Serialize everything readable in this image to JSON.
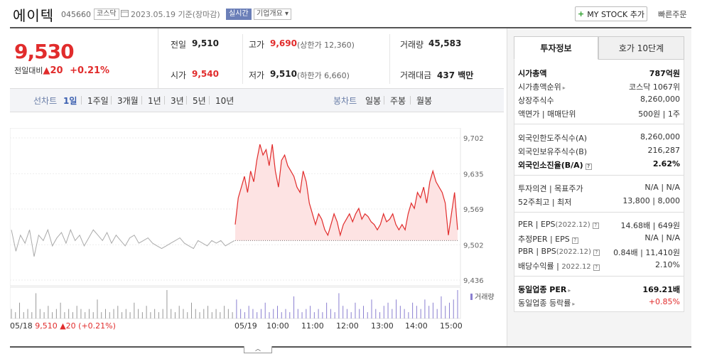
{
  "header": {
    "name": "에이텍",
    "code": "045660",
    "market_tag": "코스닥",
    "date": "2023.05.19 기준(장마감)",
    "live_tag": "실시간",
    "corp_tag": "기업개요",
    "corp_tag_arrow": "▾",
    "mystock_plus": "+",
    "mystock_label": "MY STOCK 추가",
    "quick_order": "빠른주문"
  },
  "quote": {
    "price": "9,530",
    "change_label": "전일대비",
    "change_arrow": "▲",
    "change_value": "20",
    "change_pct": "+0.21%",
    "prev_close_label": "전일",
    "prev_close": "9,510",
    "open_label": "시가",
    "open": "9,540",
    "high_label": "고가",
    "high": "9,690",
    "upper_limit": "(상한가 12,360)",
    "low_label": "저가",
    "low": "9,510",
    "lower_limit": "(하한가 6,660)",
    "volume_label": "거래량",
    "volume": "45,583",
    "amount_label": "거래대금",
    "amount": "437 백만"
  },
  "chart_tabs": {
    "line_label": "선차트",
    "line_items": [
      "1일",
      "1주일",
      "3개월",
      "1년",
      "3년",
      "5년",
      "10년"
    ],
    "selected": "1일",
    "candle_label": "봉차트",
    "candle_items": [
      "일봉",
      "주봉",
      "월봉"
    ]
  },
  "chart_data": {
    "type": "line",
    "y_ticks": [
      "9,702",
      "9,635",
      "9,569",
      "9,502",
      "9,436"
    ],
    "ylim": [
      9436,
      9702
    ],
    "baseline": 9510,
    "x_ticks": [
      "05/18",
      "05/19",
      "10:00",
      "11:00",
      "12:00",
      "13:00",
      "14:00",
      "15:00"
    ],
    "prev_day": {
      "date": "05/18",
      "close": "9,510",
      "change": "▲20",
      "change_pct": "(+0.21%)"
    },
    "volume_label": "거래량",
    "series": [
      {
        "session": "05/18",
        "values": [
          9530,
          9490,
          9520,
          9505,
          9530,
          9480,
          9520,
          9510,
          9530,
          9500,
          9515,
          9525,
          9505,
          9530,
          9510,
          9520,
          9500,
          9515,
          9530,
          9520,
          9510,
          9525,
          9505,
          9520,
          9510,
          9500,
          9515,
          9520,
          9505,
          9510,
          9515,
          9505,
          9500,
          9495,
          9500,
          9505,
          9510,
          9515,
          9505,
          9500,
          9495,
          9510,
          9505,
          9500,
          9510,
          9505,
          9510,
          9500,
          9505,
          9510
        ]
      },
      {
        "session": "05/19",
        "values": [
          9540,
          9590,
          9610,
          9630,
          9600,
          9640,
          9620,
          9660,
          9690,
          9670,
          9680,
          9650,
          9690,
          9640,
          9610,
          9660,
          9670,
          9650,
          9640,
          9630,
          9610,
          9600,
          9640,
          9620,
          9580,
          9560,
          9540,
          9560,
          9550,
          9530,
          9520,
          9540,
          9560,
          9545,
          9520,
          9540,
          9550,
          9560,
          9545,
          9560,
          9570,
          9550,
          9560,
          9555,
          9545,
          9540,
          9530,
          9540,
          9560,
          9545,
          9550,
          9560,
          9540,
          9530,
          9540,
          9530,
          9560,
          9580,
          9570,
          9600,
          9590,
          9610,
          9580,
          9620,
          9640,
          9620,
          9610,
          9600,
          9580,
          9520,
          9560,
          9600,
          9530
        ]
      }
    ],
    "volume": [
      3,
      2,
      5,
      2,
      3,
      2,
      8,
      3,
      2,
      4,
      2,
      3,
      5,
      2,
      3,
      2,
      4,
      3,
      2,
      3,
      2,
      6,
      2,
      3,
      2,
      3,
      4,
      2,
      3,
      2,
      5,
      3,
      2,
      4,
      2,
      3,
      2,
      3,
      9,
      3,
      2,
      4,
      3,
      2,
      5,
      3,
      2,
      3,
      4,
      2,
      3,
      2,
      4,
      3,
      2,
      6,
      3,
      2,
      4,
      3,
      2,
      3,
      5,
      2,
      3,
      4,
      2,
      3,
      2,
      7,
      3,
      2,
      3,
      4,
      2,
      3,
      2,
      5,
      3,
      2,
      8,
      4,
      3,
      2,
      5,
      3,
      4,
      2,
      6,
      3,
      2,
      4,
      5,
      3,
      6,
      4,
      3,
      2,
      5,
      4,
      3,
      6,
      4,
      5,
      3,
      7,
      4,
      5,
      6,
      9
    ]
  },
  "right_panel": {
    "tab_invest": "투자정보",
    "tab_orderbook": "호가 10단계",
    "market_cap_label": "시가총액",
    "market_cap": "787억원",
    "market_cap_rank_label": "시가총액순위",
    "market_cap_rank": "코스닥 1067위",
    "shares_label": "상장주식수",
    "shares": "8,260,000",
    "par_label": "액면가 | 매매단위",
    "par": "500원 | 1주",
    "foreign_limit_label": "외국인한도주식수(A)",
    "foreign_limit": "8,260,000",
    "foreign_hold_label": "외국인보유주식수(B)",
    "foreign_hold": "216,287",
    "foreign_ratio_label": "외국인소진율(B/A)",
    "foreign_ratio": "2.62%",
    "opinion_label": "투자의견 | 목표주가",
    "opinion": "N/A | N/A",
    "w52_label": "52주최고 | 최저",
    "w52": "13,800 | 8,000",
    "per_label": "PER",
    "eps_label": "EPS",
    "eps_year": "(2022.12)",
    "per": "14.68배",
    "eps": "649원",
    "est_per_label": "추정PER",
    "est_eps_label": "EPS",
    "est_per": "N/A",
    "est_eps": "N/A",
    "pbr_label": "PBR",
    "bps_label": "BPS",
    "bps_year": "(2022.12)",
    "pbr": "0.84배",
    "bps": "11,410원",
    "div_label": "배당수익률",
    "div_year": "2022.12",
    "div": "2.10%",
    "sector_per_label": "동일업종 PER",
    "sector_per": "169.21배",
    "sector_rate_label": "동일업종 등락률",
    "sector_rate": "+0.85%"
  }
}
